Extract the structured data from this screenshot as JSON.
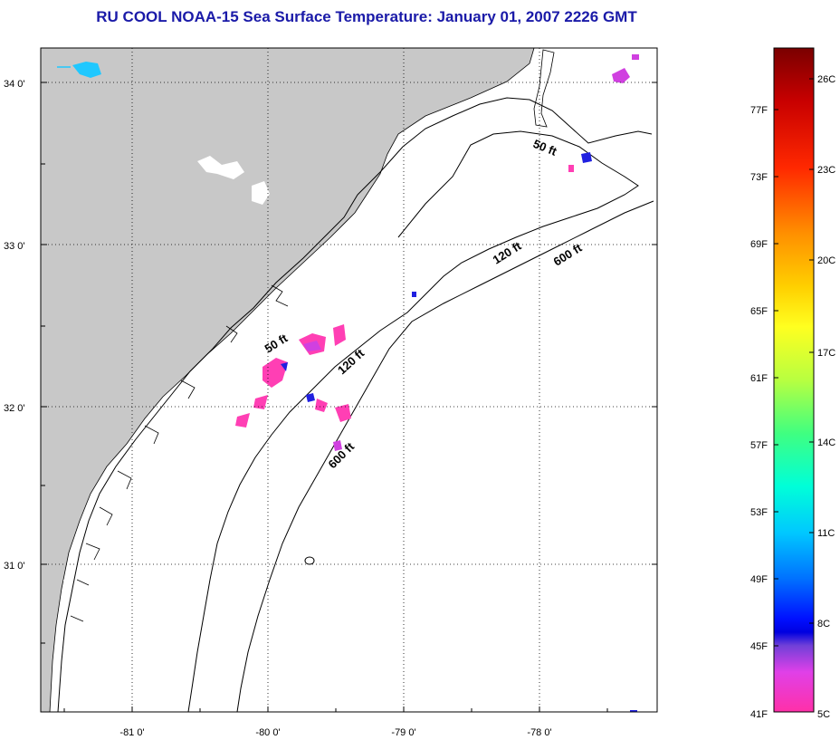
{
  "title": "RU COOL  NOAA-15  Sea Surface Temperature:  January 01, 2007 2226 GMT",
  "lat_ticks": [
    "34 0'",
    "33 0'",
    "32 0'",
    "31 0'"
  ],
  "lon_ticks": [
    "-81 0'",
    "-80 0'",
    "-79 0'",
    "-78 0'"
  ],
  "contour_labels": [
    "50 ft",
    "120 ft",
    "600 ft",
    "50 ft",
    "120 ft",
    "600 ft"
  ],
  "colorbar": {
    "fahrenheit": [
      "77F",
      "73F",
      "69F",
      "65F",
      "61F",
      "57F",
      "53F",
      "49F",
      "45F",
      "41F"
    ],
    "celsius": [
      "26C",
      "23C",
      "20C",
      "17C",
      "14C",
      "11C",
      "8C",
      "5C"
    ]
  },
  "colors": {
    "land": "#c8c8c8",
    "title": "#1a1aa8",
    "sst_pink": "#ff3fb4",
    "sst_magenta": "#d040e0",
    "sst_blue": "#2020e0",
    "cloud_cyan": "#20c8ff"
  }
}
